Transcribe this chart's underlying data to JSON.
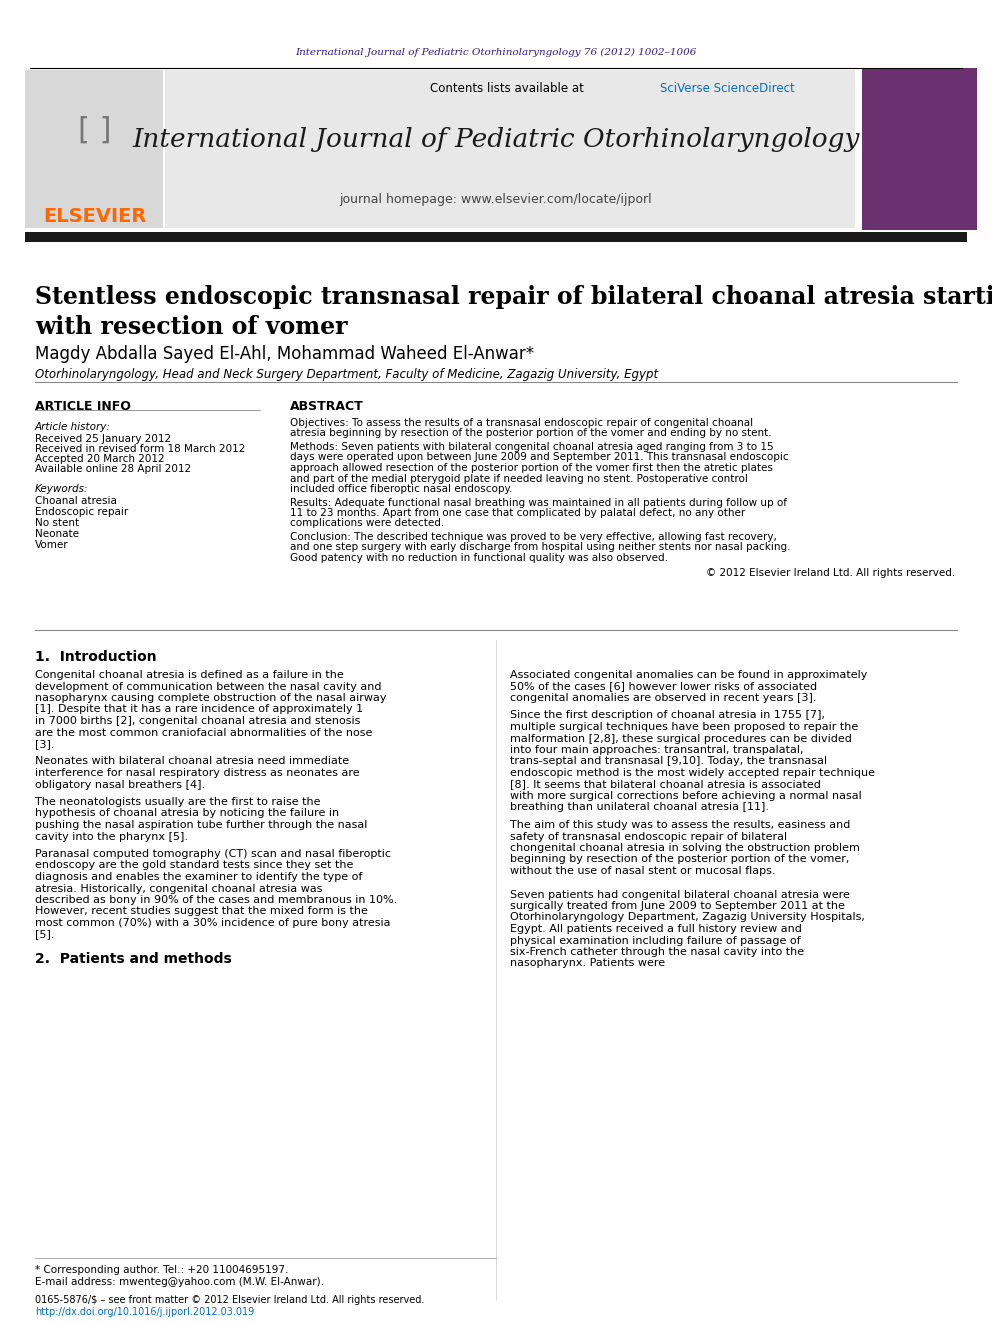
{
  "page_bg": "#ffffff",
  "header_journal_text": "International Journal of Pediatric Otorhinolaryngology 76 (2012) 1002–1006",
  "header_journal_color": "#2e1a87",
  "journal_name": "International Journal of Pediatric Otorhinolaryngology",
  "contents_text": "Contents lists available at",
  "sciverse_text": "SciVerse ScienceDirect",
  "sciverse_color": "#0070c0",
  "homepage_text": "journal homepage: www.elsevier.com/locate/ijporl",
  "header_box_color": "#e8e8e8",
  "header_bar_color": "#1a1a1a",
  "elsevier_color": "#ff6600",
  "article_title": "Stentless endoscopic transnasal repair of bilateral choanal atresia starting\nwith resection of vomer",
  "authors": "Magdy Abdalla Sayed El-Ahl, Mohammad Waheed El-Anwar*",
  "affiliation": "Otorhinolaryngology, Head and Neck Surgery Department, Faculty of Medicine, Zagazig University, Egypt",
  "article_info_header": "ARTICLE INFO",
  "abstract_header": "ABSTRACT",
  "article_history_label": "Article history:",
  "received1": "Received 25 January 2012",
  "received2": "Received in revised form 18 March 2012",
  "accepted": "Accepted 20 March 2012",
  "available": "Available online 28 April 2012",
  "keywords_label": "Keywords:",
  "keywords": [
    "Choanal atresia",
    "Endoscopic repair",
    "No stent",
    "Neonate",
    "Vomer"
  ],
  "abstract_objectives": "Objectives: To assess the results of a transnasal endoscopic repair of congenital choanal atresia beginning by resection of the posterior portion of the vomer and ending by no stent.",
  "abstract_methods": "Methods: Seven patients with bilateral congenital choanal atresia aged ranging from 3 to 15 days were operated upon between June 2009 and September 2011. This transnasal endoscopic approach allowed resection of the posterior portion of the vomer first then the atretic plates and part of the medial pterygoid plate if needed leaving no stent. Postoperative control included office fiberoptic nasal endoscopy.",
  "abstract_results": "Results: Adequate functional nasal breathing was maintained in all patients during follow up of 11 to 23 months. Apart from one case that complicated by palatal defect, no any other complications were detected.",
  "abstract_conclusion": "Conclusion: The described technique was proved to be very effective, allowing fast recovery, and one step surgery with early discharge from hospital using neither stents nor nasal packing. Good patency with no reduction in functional quality was also observed.",
  "copyright_text": "© 2012 Elsevier Ireland Ltd. All rights reserved.",
  "section1_title": "1.  Introduction",
  "section1_col1_para1": "Congenital choanal atresia is defined as a failure in the development of communication between the nasal cavity and nasopharynx causing complete obstruction of the nasal airway [1]. Despite that it has a rare incidence of approximately 1 in 7000 births [2], congenital choanal atresia and stenosis are the most common craniofacial abnormalities of the nose [3].",
  "section1_col1_para2": "Neonates with bilateral choanal atresia need immediate interference for nasal respiratory distress as neonates are obligatory nasal breathers [4].",
  "section1_col1_para3": "The neonatologists usually are the first to raise the hypothesis of choanal atresia by noticing the failure in pushing the nasal aspiration tube further through the nasal cavity into the pharynx [5].",
  "section1_col1_para4": "Paranasal computed tomography (CT) scan and nasal fiberoptic endoscopy are the gold standard tests since they set the diagnosis and enables the examiner to identify the type of atresia. Historically, congenital choanal atresia was described as bony in 90% of the cases and membranous in 10%. However, recent studies suggest that the mixed form is the most common (70%) with a 30% incidence of pure bony atresia [5].",
  "section1_col2_para1": "Associated congenital anomalies can be found in approximately 50% of the cases [6] however lower risks of associated congenital anomalies are observed in recent years [3].",
  "section1_col2_para2": "Since the first description of choanal atresia in 1755 [7], multiple surgical techniques have been proposed to repair the malformation [2,8], these surgical procedures can be divided into four main approaches: transantral, transpalatal, trans-septal and transnasal [9,10]. Today, the transnasal endoscopic method is the most widely accepted repair technique [8]. It seems that bilateral choanal atresia is associated with more surgical corrections before achieving a normal nasal breathing than unilateral choanal atresia [11].",
  "section1_col2_para3": "The aim of this study was to assess the results, easiness and safety of transnasal endoscopic repair of bilateral chongenital choanal atresia in solving the obstruction problem beginning by resection of the posterior portion of the vomer, without the use of nasal stent or mucosal flaps.",
  "section2_title": "2.  Patients and methods",
  "section2_col2_para1": "Seven patients had congenital bilateral choanal atresia were surgically treated from June 2009 to September 2011 at the Otorhinolaryngology Department, Zagazig University Hospitals, Egypt. All patients received a full history review and physical examination including failure of passage of six-French catheter through the nasal cavity into the nasopharynx. Patients were",
  "footnote1": "* Corresponding author. Tel.: +20 11004695197.",
  "footnote2": "E-mail address: mwenteg@yahoo.com (M.W. El-Anwar).",
  "footnote3": "0165-5876/$ – see front matter © 2012 Elsevier Ireland Ltd. All rights reserved.",
  "footnote4": "http://dx.doi.org/10.1016/j.ijporl.2012.03.019"
}
